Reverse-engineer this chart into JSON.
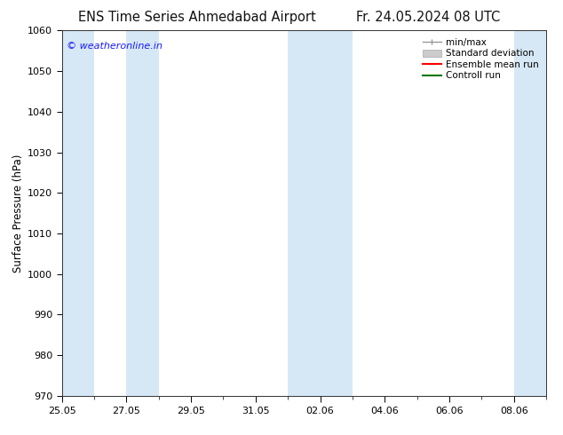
{
  "title_left": "ENS Time Series Ahmedabad Airport",
  "title_right": "Fr. 24.05.2024 08 UTC",
  "ylabel": "Surface Pressure (hPa)",
  "ylim": [
    970,
    1060
  ],
  "yticks": [
    970,
    980,
    990,
    1000,
    1010,
    1020,
    1030,
    1040,
    1050,
    1060
  ],
  "x_start": "2024-05-25",
  "x_end": "2024-06-09",
  "xtick_labels": [
    "25.05",
    "27.05",
    "29.05",
    "31.05",
    "02.06",
    "04.06",
    "06.06",
    "08.06"
  ],
  "xtick_positions_days": [
    0,
    2,
    4,
    6,
    8,
    10,
    12,
    14
  ],
  "band_color": "#d6e8f5",
  "background_color": "#ffffff",
  "watermark_text": "© weatheronline.in",
  "watermark_color": "#1a1aff",
  "legend_fontsize": 7.5,
  "title_fontsize": 10.5,
  "axis_label_fontsize": 8.5,
  "tick_fontsize": 8
}
